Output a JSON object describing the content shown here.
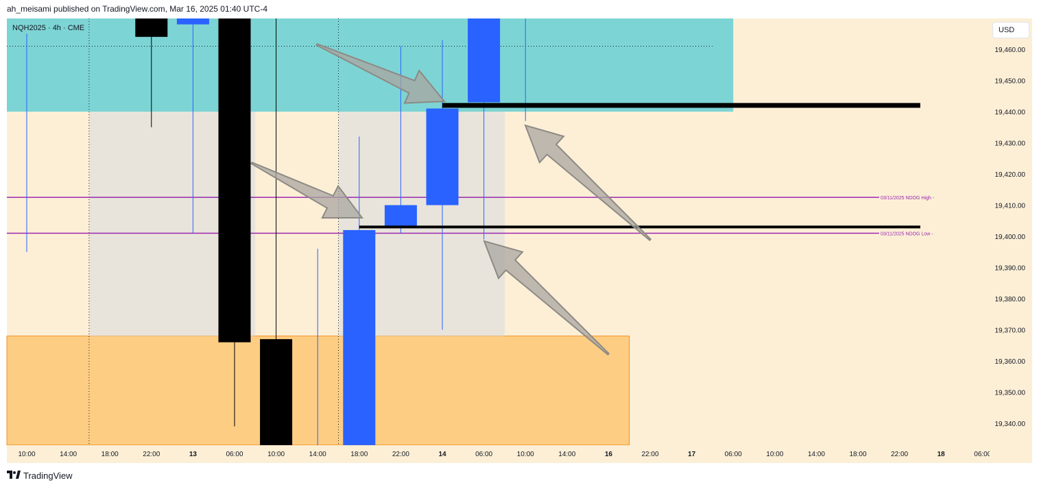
{
  "header": {
    "text": "ah_meisami published on TradingView.com, Mar 16, 2025 01:40 UTC-4"
  },
  "symbol_label": "NQH2025 · 4h · CME",
  "currency": "USD",
  "footer": {
    "brand": "TradingView"
  },
  "colors": {
    "background": "#fcefd6",
    "cyan_zone": "#7dd4d4",
    "orange_zone": "#fdc97a",
    "grey_zone": "#e4e2dc",
    "bull_candle": "#2962ff",
    "bear_candle": "#000000",
    "level_line": "#9c27b0",
    "arrow": "#aaa6a0"
  },
  "chart_data": {
    "type": "candlestick",
    "timeframe": "4h",
    "y_range": [
      19333,
      19473
    ],
    "y_ticks": [
      "19,460.00",
      "19,450.00",
      "19,440.00",
      "19,430.00",
      "19,420.00",
      "19,410.00",
      "19,400.00",
      "19,390.00",
      "19,380.00",
      "19,370.00",
      "19,360.00",
      "19,350.00",
      "19,340.00"
    ],
    "y_tick_values": [
      19460,
      19450,
      19440,
      19430,
      19420,
      19410,
      19400,
      19390,
      19380,
      19370,
      19360,
      19350,
      19340
    ],
    "x_ticks": [
      "10:00",
      "14:00",
      "18:00",
      "22:00",
      "13",
      "06:00",
      "10:00",
      "14:00",
      "18:00",
      "22:00",
      "14",
      "06:00",
      "10:00",
      "14:00",
      "16",
      "22:00",
      "17",
      "06:00",
      "10:00",
      "14:00",
      "18:00",
      "22:00",
      "18",
      "06:00"
    ],
    "bold_x_ticks": [
      "13",
      "14",
      "16",
      "17",
      "18"
    ],
    "candles": [
      {
        "slot": 0,
        "open": 19460,
        "high": 19465,
        "low": 19395,
        "close": 19460
      },
      {
        "slot": 3,
        "open": 19473,
        "high": 19473,
        "low": 19435,
        "close": 19464
      },
      {
        "slot": 4,
        "open": 19468,
        "high": 19473,
        "low": 19401,
        "close": 19473
      },
      {
        "slot": 5,
        "open": 19473,
        "high": 19473,
        "low": 19339,
        "close": 19366
      },
      {
        "slot": 6,
        "open": 19367,
        "high": 19473,
        "low": 19333,
        "close": 19333
      },
      {
        "slot": 7,
        "open": 19333,
        "high": 19396,
        "low": 19333,
        "close": 19333
      },
      {
        "slot": 8,
        "open": 19333,
        "high": 19432,
        "low": 19333,
        "close": 19402
      },
      {
        "slot": 9,
        "open": 19403,
        "high": 19461,
        "low": 19401,
        "close": 19410
      },
      {
        "slot": 10,
        "open": 19410,
        "high": 19463,
        "low": 19370,
        "close": 19441
      },
      {
        "slot": 11,
        "open": 19443,
        "high": 19473,
        "low": 19399,
        "close": 19473
      },
      {
        "slot": 12,
        "open": 19473,
        "high": 19473,
        "low": 19437,
        "close": 19473
      }
    ],
    "level_lines": [
      {
        "label": "03/11/2025 NDOG High -",
        "price": 19412.5
      },
      {
        "label": "03/11/2025 NDOG Low -",
        "price": 19401
      }
    ],
    "black_lines": [
      {
        "price": 19442,
        "from_slot": 10,
        "to_slot": 21.5
      },
      {
        "price": 19403,
        "from_slot": 8,
        "to_slot": 21.5
      }
    ],
    "zones": [
      {
        "kind": "cyan",
        "from_price": 19440,
        "to_price": 19473,
        "from_slot": -0.5,
        "to_slot": 17
      },
      {
        "kind": "orange",
        "from_price": 19333,
        "to_price": 19368,
        "from_slot": -0.5,
        "to_slot": 14.5
      },
      {
        "kind": "grey",
        "from_price": 19368,
        "to_price": 19440,
        "from_slot": 1.5,
        "to_slot": 5.5
      },
      {
        "kind": "grey",
        "from_price": 19368,
        "to_price": 19440,
        "from_slot": 7.5,
        "to_slot": 11.5
      }
    ],
    "session_lines_slots": [
      1.5,
      7.5
    ],
    "dotted_level": {
      "price": 19461,
      "from_slot": -0.5,
      "to_slot": 16.5
    }
  }
}
